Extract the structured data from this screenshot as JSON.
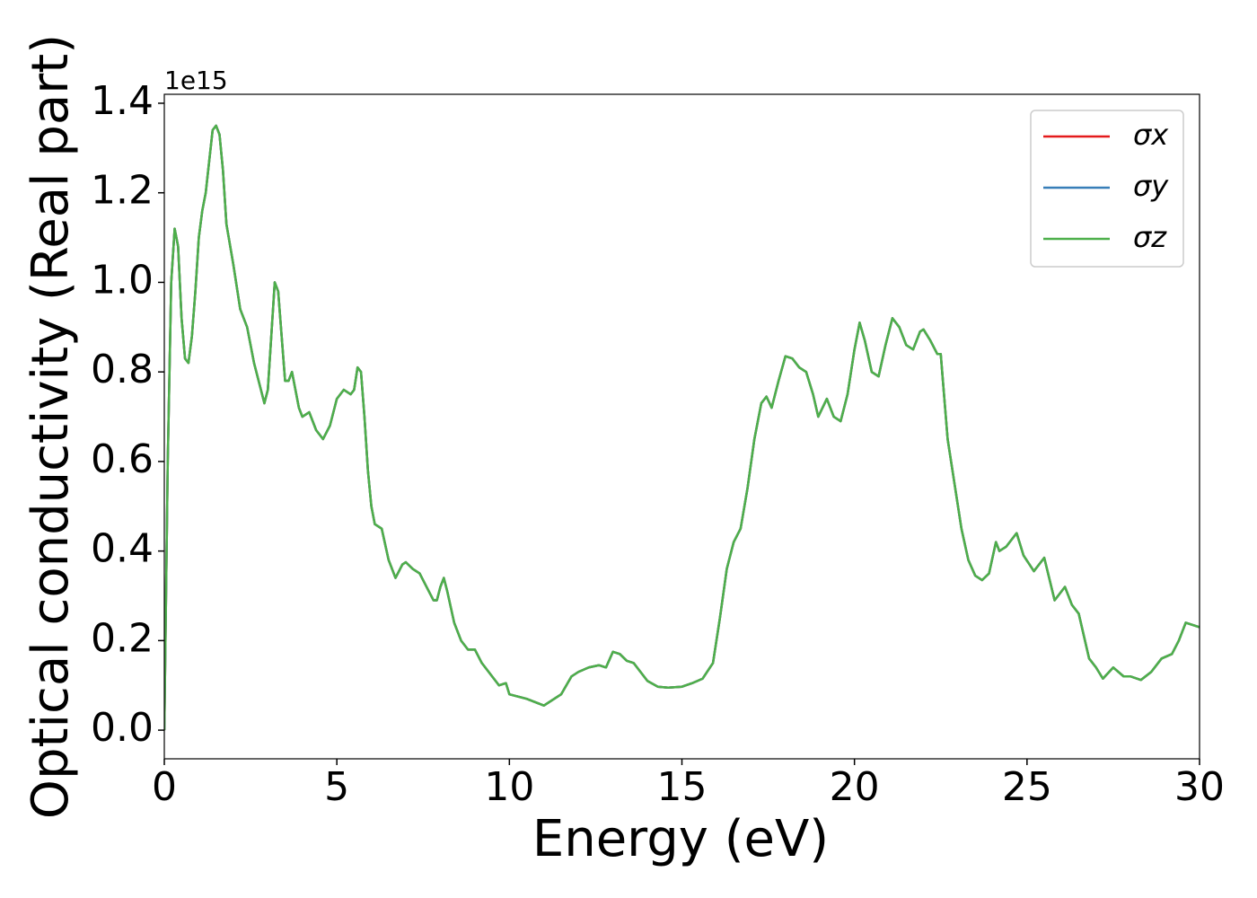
{
  "chart_data": {
    "type": "line",
    "xlabel": "Energy (eV)",
    "ylabel": "Optical conductivity (Real part)",
    "y_offset_label": "1e15",
    "x": [
      0,
      0.1,
      0.2,
      0.3,
      0.4,
      0.5,
      0.6,
      0.7,
      0.8,
      0.9,
      1.0,
      1.1,
      1.2,
      1.3,
      1.4,
      1.5,
      1.6,
      1.7,
      1.8,
      2.0,
      2.2,
      2.4,
      2.6,
      2.8,
      2.9,
      3.0,
      3.1,
      3.2,
      3.3,
      3.4,
      3.5,
      3.6,
      3.7,
      3.8,
      3.9,
      4.0,
      4.2,
      4.4,
      4.6,
      4.8,
      5.0,
      5.2,
      5.4,
      5.5,
      5.6,
      5.7,
      5.8,
      5.9,
      6.0,
      6.1,
      6.3,
      6.5,
      6.7,
      6.9,
      7.0,
      7.2,
      7.4,
      7.6,
      7.8,
      7.9,
      8.0,
      8.1,
      8.2,
      8.4,
      8.6,
      8.8,
      9.0,
      9.2,
      9.5,
      9.7,
      9.9,
      10.0,
      10.5,
      11.0,
      11.2,
      11.5,
      11.8,
      12.0,
      12.3,
      12.6,
      12.8,
      13.0,
      13.2,
      13.4,
      13.6,
      13.8,
      14.0,
      14.3,
      14.6,
      15.0,
      15.3,
      15.6,
      15.9,
      16.1,
      16.3,
      16.5,
      16.7,
      16.9,
      17.1,
      17.3,
      17.45,
      17.6,
      17.8,
      18.0,
      18.2,
      18.4,
      18.6,
      18.8,
      18.95,
      19.2,
      19.4,
      19.6,
      19.8,
      20.0,
      20.15,
      20.3,
      20.5,
      20.7,
      20.9,
      21.1,
      21.3,
      21.5,
      21.7,
      21.9,
      22.0,
      22.2,
      22.4,
      22.5,
      22.7,
      22.9,
      23.1,
      23.3,
      23.5,
      23.7,
      23.9,
      24.1,
      24.2,
      24.4,
      24.6,
      24.7,
      24.9,
      25.2,
      25.5,
      25.8,
      26.1,
      26.3,
      26.5,
      26.8,
      27.0,
      27.2,
      27.5,
      27.8,
      28.0,
      28.3,
      28.6,
      28.9,
      29.2,
      29.4,
      29.6,
      29.8,
      30.0
    ],
    "series": [
      {
        "name": "σx",
        "color": "#e41a1c",
        "values": [
          0,
          0.6,
          1.0,
          1.12,
          1.08,
          0.92,
          0.83,
          0.82,
          0.88,
          0.98,
          1.1,
          1.16,
          1.2,
          1.27,
          1.34,
          1.35,
          1.33,
          1.25,
          1.13,
          1.04,
          0.94,
          0.9,
          0.82,
          0.76,
          0.73,
          0.76,
          0.88,
          1.0,
          0.98,
          0.88,
          0.78,
          0.78,
          0.8,
          0.76,
          0.72,
          0.7,
          0.71,
          0.67,
          0.65,
          0.68,
          0.74,
          0.76,
          0.75,
          0.76,
          0.81,
          0.8,
          0.7,
          0.58,
          0.5,
          0.46,
          0.45,
          0.38,
          0.34,
          0.37,
          0.375,
          0.36,
          0.35,
          0.32,
          0.29,
          0.29,
          0.32,
          0.34,
          0.31,
          0.24,
          0.2,
          0.18,
          0.18,
          0.15,
          0.12,
          0.1,
          0.105,
          0.08,
          0.07,
          0.055,
          0.065,
          0.08,
          0.12,
          0.13,
          0.14,
          0.145,
          0.14,
          0.175,
          0.17,
          0.155,
          0.15,
          0.13,
          0.11,
          0.097,
          0.095,
          0.097,
          0.105,
          0.115,
          0.15,
          0.25,
          0.36,
          0.42,
          0.45,
          0.54,
          0.65,
          0.73,
          0.745,
          0.72,
          0.78,
          0.835,
          0.83,
          0.81,
          0.8,
          0.75,
          0.7,
          0.74,
          0.7,
          0.69,
          0.75,
          0.85,
          0.91,
          0.87,
          0.8,
          0.79,
          0.86,
          0.92,
          0.9,
          0.86,
          0.85,
          0.89,
          0.895,
          0.87,
          0.84,
          0.84,
          0.65,
          0.55,
          0.45,
          0.38,
          0.345,
          0.335,
          0.35,
          0.42,
          0.4,
          0.41,
          0.43,
          0.44,
          0.39,
          0.355,
          0.385,
          0.29,
          0.32,
          0.28,
          0.26,
          0.16,
          0.14,
          0.115,
          0.14,
          0.12,
          0.12,
          0.112,
          0.13,
          0.16,
          0.17,
          0.2,
          0.24,
          0.235,
          0.23
        ]
      },
      {
        "name": "σy",
        "color": "#377eb8",
        "values": [
          0,
          0.6,
          1.0,
          1.12,
          1.08,
          0.92,
          0.83,
          0.82,
          0.88,
          0.98,
          1.1,
          1.16,
          1.2,
          1.27,
          1.34,
          1.35,
          1.33,
          1.25,
          1.13,
          1.04,
          0.94,
          0.9,
          0.82,
          0.76,
          0.73,
          0.76,
          0.88,
          1.0,
          0.98,
          0.88,
          0.78,
          0.78,
          0.8,
          0.76,
          0.72,
          0.7,
          0.71,
          0.67,
          0.65,
          0.68,
          0.74,
          0.76,
          0.75,
          0.76,
          0.81,
          0.8,
          0.7,
          0.58,
          0.5,
          0.46,
          0.45,
          0.38,
          0.34,
          0.37,
          0.375,
          0.36,
          0.35,
          0.32,
          0.29,
          0.29,
          0.32,
          0.34,
          0.31,
          0.24,
          0.2,
          0.18,
          0.18,
          0.15,
          0.12,
          0.1,
          0.105,
          0.08,
          0.07,
          0.055,
          0.065,
          0.08,
          0.12,
          0.13,
          0.14,
          0.145,
          0.14,
          0.175,
          0.17,
          0.155,
          0.15,
          0.13,
          0.11,
          0.097,
          0.095,
          0.097,
          0.105,
          0.115,
          0.15,
          0.25,
          0.36,
          0.42,
          0.45,
          0.54,
          0.65,
          0.73,
          0.745,
          0.72,
          0.78,
          0.835,
          0.83,
          0.81,
          0.8,
          0.75,
          0.7,
          0.74,
          0.7,
          0.69,
          0.75,
          0.85,
          0.91,
          0.87,
          0.8,
          0.79,
          0.86,
          0.92,
          0.9,
          0.86,
          0.85,
          0.89,
          0.895,
          0.87,
          0.84,
          0.84,
          0.65,
          0.55,
          0.45,
          0.38,
          0.345,
          0.335,
          0.35,
          0.42,
          0.4,
          0.41,
          0.43,
          0.44,
          0.39,
          0.355,
          0.385,
          0.29,
          0.32,
          0.28,
          0.26,
          0.16,
          0.14,
          0.115,
          0.14,
          0.12,
          0.12,
          0.112,
          0.13,
          0.16,
          0.17,
          0.2,
          0.24,
          0.235,
          0.23
        ]
      },
      {
        "name": "σz",
        "color": "#4daf4a",
        "values": [
          0,
          0.6,
          1.0,
          1.12,
          1.08,
          0.92,
          0.83,
          0.82,
          0.88,
          0.98,
          1.1,
          1.16,
          1.2,
          1.27,
          1.34,
          1.35,
          1.33,
          1.25,
          1.13,
          1.04,
          0.94,
          0.9,
          0.82,
          0.76,
          0.73,
          0.76,
          0.88,
          1.0,
          0.98,
          0.88,
          0.78,
          0.78,
          0.8,
          0.76,
          0.72,
          0.7,
          0.71,
          0.67,
          0.65,
          0.68,
          0.74,
          0.76,
          0.75,
          0.76,
          0.81,
          0.8,
          0.7,
          0.58,
          0.5,
          0.46,
          0.45,
          0.38,
          0.34,
          0.37,
          0.375,
          0.36,
          0.35,
          0.32,
          0.29,
          0.29,
          0.32,
          0.34,
          0.31,
          0.24,
          0.2,
          0.18,
          0.18,
          0.15,
          0.12,
          0.1,
          0.105,
          0.08,
          0.07,
          0.055,
          0.065,
          0.08,
          0.12,
          0.13,
          0.14,
          0.145,
          0.14,
          0.175,
          0.17,
          0.155,
          0.15,
          0.13,
          0.11,
          0.097,
          0.095,
          0.097,
          0.105,
          0.115,
          0.15,
          0.25,
          0.36,
          0.42,
          0.45,
          0.54,
          0.65,
          0.73,
          0.745,
          0.72,
          0.78,
          0.835,
          0.83,
          0.81,
          0.8,
          0.75,
          0.7,
          0.74,
          0.7,
          0.69,
          0.75,
          0.85,
          0.91,
          0.87,
          0.8,
          0.79,
          0.86,
          0.92,
          0.9,
          0.86,
          0.85,
          0.89,
          0.895,
          0.87,
          0.84,
          0.84,
          0.65,
          0.55,
          0.45,
          0.38,
          0.345,
          0.335,
          0.35,
          0.42,
          0.4,
          0.41,
          0.43,
          0.44,
          0.39,
          0.355,
          0.385,
          0.29,
          0.32,
          0.28,
          0.26,
          0.16,
          0.14,
          0.115,
          0.14,
          0.12,
          0.12,
          0.112,
          0.13,
          0.16,
          0.17,
          0.2,
          0.24,
          0.235,
          0.23
        ]
      }
    ],
    "xlim": [
      0,
      30
    ],
    "xticks": [
      0,
      5,
      10,
      15,
      20,
      25,
      30
    ],
    "ylim": [
      -0.064,
      1.42
    ],
    "yticks": [
      {
        "value": 0,
        "label": "0.0"
      },
      0.2,
      0.4,
      0.6,
      0.8,
      {
        "value": 1,
        "label": "1.0"
      },
      1.2,
      1.4
    ],
    "grid": false,
    "legend": "upper right"
  }
}
